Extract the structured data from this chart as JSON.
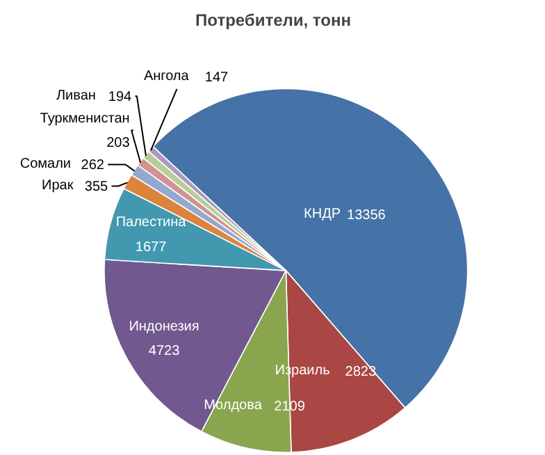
{
  "chart_data": {
    "type": "pie",
    "title": "Потребители, тонн",
    "categories": [
      "КНДР",
      "Израиль",
      "Молдова",
      "Индонезия",
      "Палестина",
      "Ирак",
      "Сомали",
      "Туркменистан",
      "Ливан",
      "Ангола"
    ],
    "values": [
      13356,
      2823,
      2109,
      4723,
      1677,
      355,
      262,
      203,
      194,
      147
    ],
    "colors": [
      "#4572a7",
      "#aa4643",
      "#89a54e",
      "#71588f",
      "#4198af",
      "#db843d",
      "#93a9cf",
      "#d19392",
      "#b9cd96",
      "#a99bbd"
    ],
    "data_labels": true
  }
}
